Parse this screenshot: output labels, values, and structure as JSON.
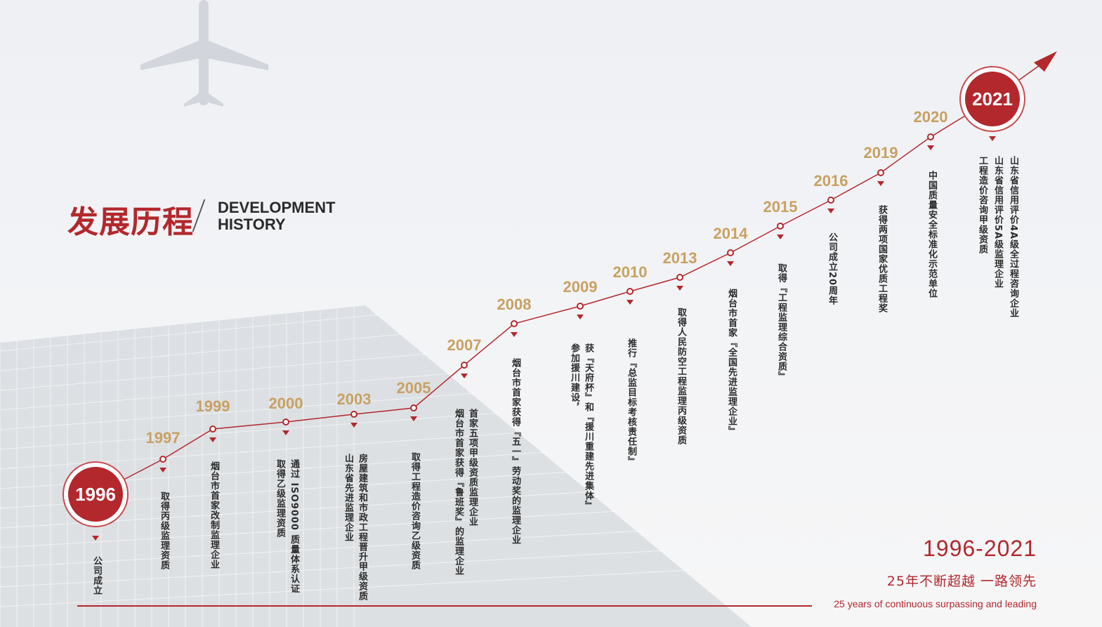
{
  "title": {
    "cn": "发展历程",
    "en_line1": "DEVELOPMENT",
    "en_line2": "HISTORY"
  },
  "colors": {
    "accent": "#b3282d",
    "year_gold": "#c8a162",
    "text": "#2c2c2c"
  },
  "milestones": [
    {
      "year": "1996",
      "lines": [
        "公司成立"
      ]
    },
    {
      "year": "1997",
      "lines": [
        "取得丙级监理资质"
      ]
    },
    {
      "year": "1999",
      "lines": [
        "烟台市首家改制监理企业"
      ]
    },
    {
      "year": "2000",
      "lines": [
        "通过 ISO9000 质量体系认证",
        "取得乙级监理资质"
      ]
    },
    {
      "year": "2003",
      "lines": [
        "房屋建筑和市政工程晋升甲级资质",
        "山东省先进监理企业"
      ]
    },
    {
      "year": "2005",
      "lines": [
        "取得工程造价咨询乙级资质"
      ]
    },
    {
      "year": "2007",
      "lines": [
        "首家五项甲级资质监理企业",
        "烟台市首家获得『鲁班奖』的监理企业"
      ]
    },
    {
      "year": "2008",
      "lines": [
        "烟台市首家获得『五一』劳动奖的监理企业"
      ]
    },
    {
      "year": "2009",
      "lines": [
        "获『天府杯』和『援川重建先进集体』",
        "参加援川建设，"
      ]
    },
    {
      "year": "2010",
      "lines": [
        "推行『总监目标考核责任制』"
      ]
    },
    {
      "year": "2013",
      "lines": [
        "取得人民防空工程监理丙级资质"
      ]
    },
    {
      "year": "2014",
      "lines": [
        "烟台市首家『全国先进监理企业』"
      ]
    },
    {
      "year": "2015",
      "lines": [
        "取得『工程监理综合资质』"
      ]
    },
    {
      "year": "2016",
      "lines": [
        "公司成立20周年"
      ]
    },
    {
      "year": "2019",
      "lines": [
        "获得两项国家优质工程奖"
      ]
    },
    {
      "year": "2020",
      "lines": [
        "中国质量安全标准化示范单位"
      ]
    },
    {
      "year": "2021",
      "lines": [
        "山东省信用评价4A级全过程咨询企业",
        "山东省信用评价5A级监理企业",
        "工程造价咨询甲级资质"
      ]
    }
  ],
  "slogan": {
    "years": "1996-2021",
    "cn": "25年不断超越  一路领先",
    "en": "25 years of continuous surpassing and leading"
  }
}
